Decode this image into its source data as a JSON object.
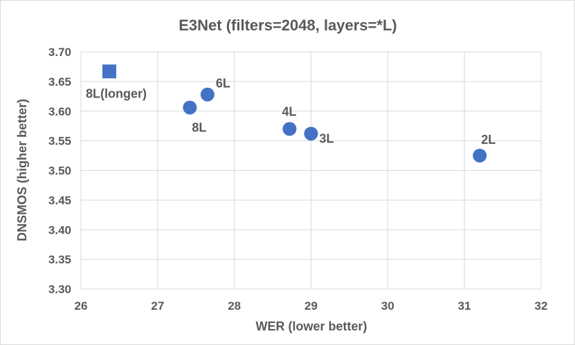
{
  "chart_data": {
    "type": "scatter",
    "title": "E3Net (filters=2048, layers=*L)",
    "xlabel": "WER (lower better)",
    "ylabel": "DNSMOS (higher better)",
    "xlim": [
      26,
      32
    ],
    "ylim": [
      3.3,
      3.7
    ],
    "xticks": [
      "26",
      "27",
      "28",
      "29",
      "30",
      "31",
      "32"
    ],
    "yticks": [
      "3.30",
      "3.35",
      "3.40",
      "3.45",
      "3.50",
      "3.55",
      "3.60",
      "3.65",
      "3.70"
    ],
    "grid": true,
    "color": "#4472c4",
    "points": [
      {
        "label": "8L(longer)",
        "x": 26.37,
        "y": 3.667,
        "marker": "square"
      },
      {
        "label": "6L",
        "x": 27.65,
        "y": 3.628,
        "marker": "circle"
      },
      {
        "label": "8L",
        "x": 27.42,
        "y": 3.606,
        "marker": "circle"
      },
      {
        "label": "4L",
        "x": 28.72,
        "y": 3.57,
        "marker": "circle"
      },
      {
        "label": "3L",
        "x": 29.0,
        "y": 3.562,
        "marker": "circle"
      },
      {
        "label": "2L",
        "x": 31.2,
        "y": 3.525,
        "marker": "circle"
      }
    ]
  }
}
